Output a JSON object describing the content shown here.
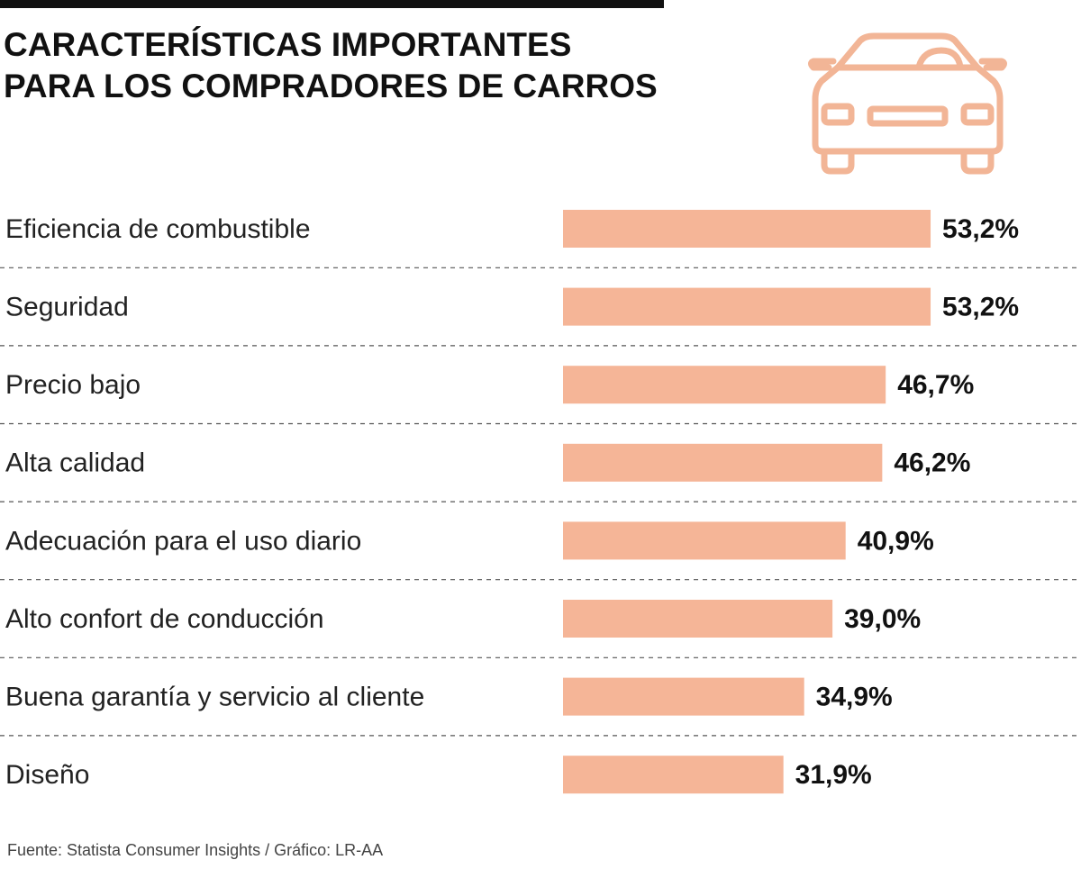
{
  "chart_data": {
    "type": "bar",
    "orientation": "horizontal",
    "title": [
      "CARACTERÍSTICAS IMPORTANTES",
      "PARA LOS COMPRADORES DE CARROS"
    ],
    "categories": [
      "Eficiencia de combustible",
      "Seguridad",
      "Precio bajo",
      "Alta calidad",
      "Adecuación para el uso diario",
      "Alto confort de conducción",
      "Buena garantía y servicio al cliente",
      "Diseño"
    ],
    "values": [
      53.2,
      53.2,
      46.7,
      46.2,
      40.9,
      39.0,
      34.9,
      31.9
    ],
    "value_labels": [
      "53,2%",
      "53,2%",
      "46,7%",
      "46,2%",
      "40,9%",
      "39,0%",
      "34,9%",
      "31,9%"
    ],
    "color": "#f5b597",
    "source": "Fuente: Statista Consumer Insights / Gráfico: LR-AA"
  }
}
